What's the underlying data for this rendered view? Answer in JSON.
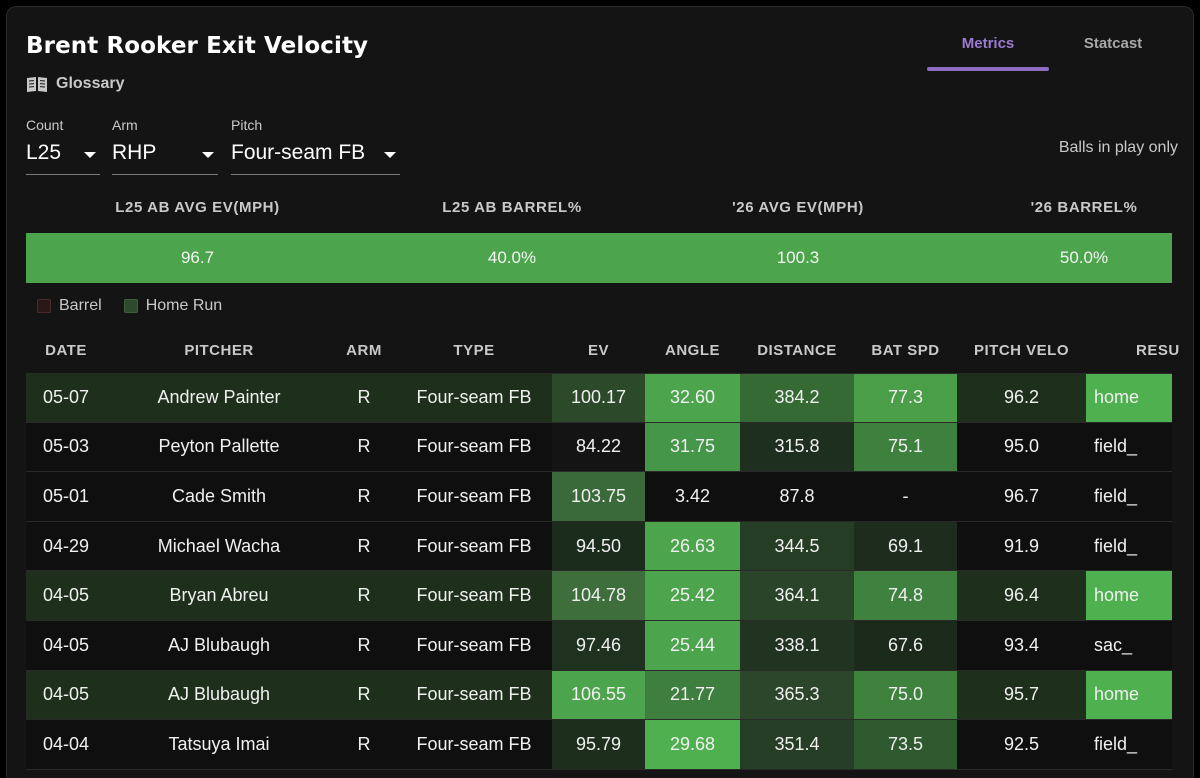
{
  "header": {
    "title": "Brent Rooker Exit Velocity",
    "glossary_label": "Glossary"
  },
  "tabs": [
    {
      "label": "Metrics",
      "active": true
    },
    {
      "label": "Statcast",
      "active": false
    }
  ],
  "filters": {
    "count": {
      "label": "Count",
      "value": "L25"
    },
    "arm": {
      "label": "Arm",
      "value": "RHP"
    },
    "pitch": {
      "label": "Pitch",
      "value": "Four-seam FB"
    }
  },
  "balls_in_play_note": "Balls in play only",
  "summary": {
    "headers": [
      "L25 AB AVG EV(MPH)",
      "L25 AB BARREL%",
      "'26 AVG EV(MPH)",
      "'26 BARREL%"
    ],
    "values": [
      "96.7",
      "40.0%",
      "100.3",
      "50.0%"
    ]
  },
  "legend": [
    {
      "label": "Barrel",
      "color": "#3a1c1c"
    },
    {
      "label": "Home Run",
      "color": "#2e4a2c"
    }
  ],
  "table": {
    "columns": [
      "DATE",
      "PITCHER",
      "ARM",
      "TYPE",
      "EV",
      "ANGLE",
      "DISTANCE",
      "BAT SPD",
      "PITCH VELO",
      "RESU"
    ],
    "rows": [
      {
        "date": "05-07",
        "pitcher": "Andrew Painter",
        "arm": "R",
        "type": "Four-seam FB",
        "ev": "100.17",
        "angle": "32.60",
        "distance": "384.2",
        "bat_spd": "77.3",
        "pitch_velo": "96.2",
        "result": "home",
        "row_bg": "#1e301c",
        "ev_bg": "#2c4a2a",
        "angle_bg": "#4ca54c",
        "distance_bg": "#356a34",
        "bat_bg": "#4a9e48",
        "result_bg": "#4fb04f"
      },
      {
        "date": "05-03",
        "pitcher": "Peyton Pallette",
        "arm": "R",
        "type": "Four-seam FB",
        "ev": "84.22",
        "angle": "31.75",
        "distance": "315.8",
        "bat_spd": "75.1",
        "pitch_velo": "95.0",
        "result": "field_",
        "row_bg": "#0f0f0f",
        "ev_bg": "#141414",
        "angle_bg": "#46964a",
        "distance_bg": "#1f2f1f",
        "bat_bg": "#3e813e",
        "result_bg": ""
      },
      {
        "date": "05-01",
        "pitcher": "Cade Smith",
        "arm": "R",
        "type": "Four-seam FB",
        "ev": "103.75",
        "angle": "3.42",
        "distance": "87.8",
        "bat_spd": "-",
        "pitch_velo": "96.7",
        "result": "field_",
        "row_bg": "#0f0f0f",
        "ev_bg": "#3a6a39",
        "angle_bg": "#0f0f0f",
        "distance_bg": "#0f0f0f",
        "bat_bg": "#0f0f0f",
        "result_bg": ""
      },
      {
        "date": "04-29",
        "pitcher": "Michael Wacha",
        "arm": "R",
        "type": "Four-seam FB",
        "ev": "94.50",
        "angle": "26.63",
        "distance": "344.5",
        "bat_spd": "69.1",
        "pitch_velo": "91.9",
        "result": "field_",
        "row_bg": "#0f0f0f",
        "ev_bg": "#1c2c1c",
        "angle_bg": "#4ca54c",
        "distance_bg": "#253c25",
        "bat_bg": "#1d2c1d",
        "result_bg": ""
      },
      {
        "date": "04-05",
        "pitcher": "Bryan Abreu",
        "arm": "R",
        "type": "Four-seam FB",
        "ev": "104.78",
        "angle": "25.42",
        "distance": "364.1",
        "bat_spd": "74.8",
        "pitch_velo": "96.4",
        "result": "home",
        "row_bg": "#1e301c",
        "ev_bg": "#3e6e3c",
        "angle_bg": "#4ca54c",
        "distance_bg": "#2a442a",
        "bat_bg": "#3f8240",
        "result_bg": "#4fb04f"
      },
      {
        "date": "04-05",
        "pitcher": "AJ Blubaugh",
        "arm": "R",
        "type": "Four-seam FB",
        "ev": "97.46",
        "angle": "25.44",
        "distance": "338.1",
        "bat_spd": "67.6",
        "pitch_velo": "93.4",
        "result": "sac_",
        "row_bg": "#0f0f0f",
        "ev_bg": "#1f321f",
        "angle_bg": "#4ca54c",
        "distance_bg": "#213421",
        "bat_bg": "#1c2a1c",
        "result_bg": ""
      },
      {
        "date": "04-05",
        "pitcher": "AJ Blubaugh",
        "arm": "R",
        "type": "Four-seam FB",
        "ev": "106.55",
        "angle": "21.77",
        "distance": "365.3",
        "bat_spd": "75.0",
        "pitch_velo": "95.7",
        "result": "home",
        "row_bg": "#1e301c",
        "ev_bg": "#4ca54c",
        "angle_bg": "#3e7e3e",
        "distance_bg": "#2b462b",
        "bat_bg": "#3e823e",
        "result_bg": "#4fb04f"
      },
      {
        "date": "04-04",
        "pitcher": "Tatsuya Imai",
        "arm": "R",
        "type": "Four-seam FB",
        "ev": "95.79",
        "angle": "29.68",
        "distance": "351.4",
        "bat_spd": "73.5",
        "pitch_velo": "92.5",
        "result": "field_",
        "row_bg": "#0f0f0f",
        "ev_bg": "#1d2e1d",
        "angle_bg": "#4fb04f",
        "distance_bg": "#263e26",
        "bat_bg": "#2f5a2f",
        "result_bg": ""
      }
    ]
  }
}
